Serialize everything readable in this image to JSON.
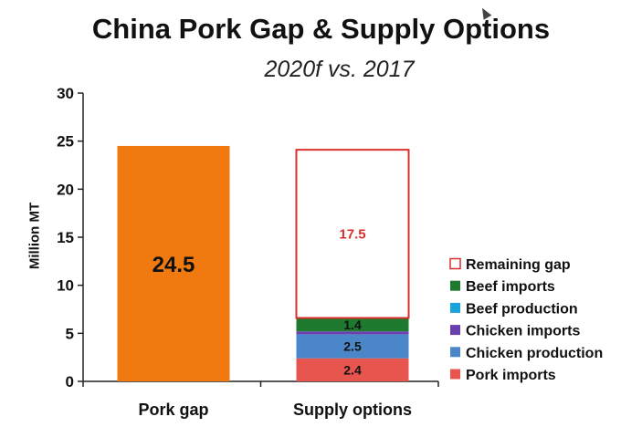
{
  "chart_data": {
    "type": "bar",
    "title": "China Pork Gap & Supply Options",
    "subtitle": "2020f vs. 2017",
    "ylabel": "Million MT",
    "ylim": [
      0,
      30
    ],
    "yticks": [
      0,
      5,
      10,
      15,
      20,
      25,
      30
    ],
    "categories": [
      "Pork gap",
      "Supply options"
    ],
    "pork_gap": {
      "value": 24.5,
      "label": "24.5",
      "color": "#F07A10"
    },
    "stack": [
      {
        "name": "Pork imports",
        "value": 2.4,
        "label": "2.4",
        "color": "#E8544E"
      },
      {
        "name": "Chicken production",
        "value": 2.5,
        "label": "2.5",
        "color": "#4A86C8"
      },
      {
        "name": "Chicken imports",
        "value": 0.3,
        "label": "",
        "color": "#6A3FB0"
      },
      {
        "name": "Beef production",
        "value": 0.0,
        "label": "",
        "color": "#1BA3DC"
      },
      {
        "name": "Beef imports",
        "value": 1.4,
        "label": "1.4",
        "color": "#1E7A2E"
      },
      {
        "name": "Remaining gap",
        "value": 17.5,
        "label": "17.5",
        "color": "#D9302E",
        "outline": true
      }
    ],
    "legend": [
      {
        "name": "Remaining gap",
        "color": "#D9302E",
        "outline": true
      },
      {
        "name": "Beef imports",
        "color": "#1E7A2E"
      },
      {
        "name": "Beef production",
        "color": "#1BA3DC"
      },
      {
        "name": "Chicken imports",
        "color": "#6A3FB0"
      },
      {
        "name": "Chicken production",
        "color": "#4A86C8"
      },
      {
        "name": "Pork imports",
        "color": "#E8544E"
      }
    ],
    "legend_position": "right",
    "grid": false
  }
}
